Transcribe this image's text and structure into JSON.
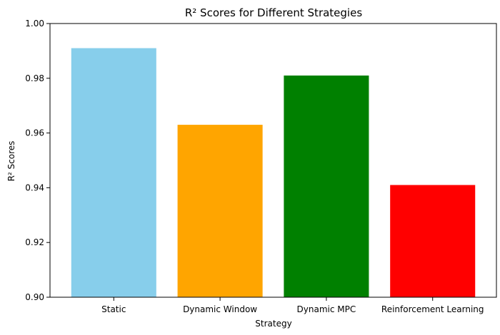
{
  "chart_data": {
    "type": "bar",
    "title": "R² Scores for Different Strategies",
    "xlabel": "Strategy",
    "ylabel": "R² Scores",
    "categories": [
      "Static",
      "Dynamic Window",
      "Dynamic MPC",
      "Reinforcement Learning"
    ],
    "values": [
      0.991,
      0.963,
      0.981,
      0.941
    ],
    "colors": [
      "#87ceeb",
      "#ffa500",
      "#008000",
      "#ff0000"
    ],
    "ylim": [
      0.9,
      1.0
    ],
    "yticks": [
      0.9,
      0.92,
      0.94,
      0.96,
      0.98,
      1.0
    ],
    "ytick_labels": [
      "0.90",
      "0.92",
      "0.94",
      "0.96",
      "0.98",
      "1.00"
    ],
    "grid": false,
    "legend": "none"
  }
}
